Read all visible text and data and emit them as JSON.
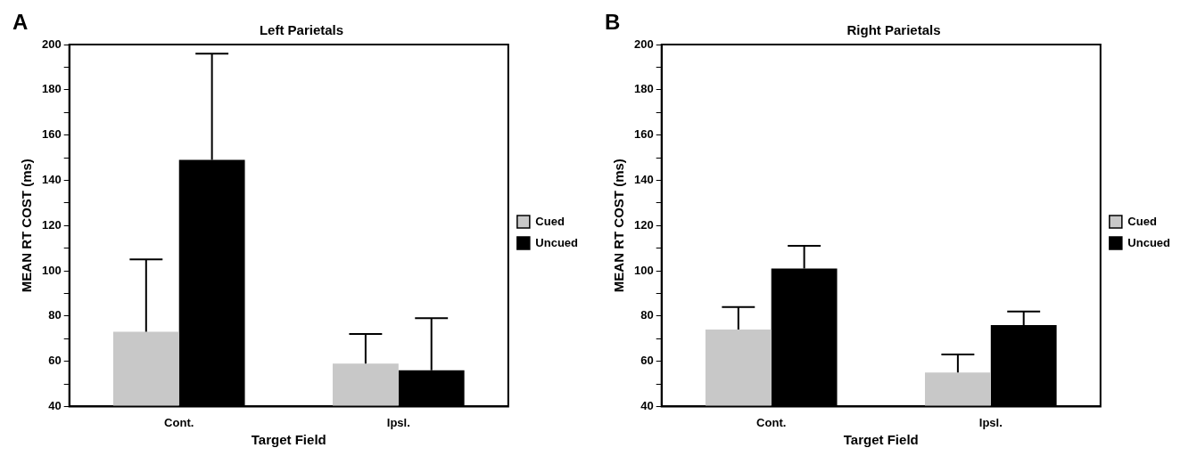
{
  "chart_data": [
    {
      "type": "bar",
      "title": "Left Parietals",
      "xlabel": "Target Field",
      "ylabel": "MEAN RT COST (ms)",
      "categories": [
        "Cont.",
        "Ipsl."
      ],
      "series": [
        {
          "name": "Cued",
          "color": "#c8c8c8",
          "values": [
            73,
            59
          ],
          "errors": [
            [
              73,
              105
            ],
            [
              59,
              72
            ]
          ]
        },
        {
          "name": "Uncued",
          "color": "#000000",
          "values": [
            149,
            56
          ],
          "errors": [
            [
              149,
              196
            ],
            [
              56,
              79
            ]
          ]
        }
      ],
      "ylim": [
        40,
        200
      ],
      "yticks": [
        40,
        {
          "value": 50,
          "label": null
        },
        60,
        {
          "value": 70,
          "label": null
        },
        80,
        {
          "value": 90,
          "label": null
        },
        100,
        {
          "value": 110,
          "label": null
        },
        120,
        {
          "value": 130,
          "label": null
        },
        140,
        {
          "value": 150,
          "label": null
        },
        160,
        {
          "value": 170,
          "label": null
        },
        180,
        {
          "value": 190,
          "label": null
        },
        200
      ],
      "grid": false,
      "legend": "right",
      "annotations": [
        "A"
      ]
    },
    {
      "type": "bar",
      "title": "Right Parietals",
      "xlabel": "Target Field",
      "ylabel": "MEAN RT COST (ms)",
      "categories": [
        "Cont.",
        "Ipsl."
      ],
      "series": [
        {
          "name": "Cued",
          "color": "#c8c8c8",
          "values": [
            74,
            55
          ],
          "errors": [
            [
              74,
              84
            ],
            [
              55,
              63
            ]
          ]
        },
        {
          "name": "Uncued",
          "color": "#000000",
          "values": [
            101,
            76
          ],
          "errors": [
            [
              101,
              111
            ],
            [
              76,
              82
            ]
          ]
        }
      ],
      "ylim": [
        40,
        200
      ],
      "yticks": [
        40,
        {
          "value": 50,
          "label": null
        },
        60,
        {
          "value": 70,
          "label": null
        },
        80,
        {
          "value": 90,
          "label": null
        },
        100,
        {
          "value": 110,
          "label": null
        },
        120,
        {
          "value": 130,
          "label": null
        },
        140,
        {
          "value": 150,
          "label": null
        },
        160,
        {
          "value": 170,
          "label": null
        },
        180,
        {
          "value": 190,
          "label": null
        },
        200
      ],
      "grid": false,
      "legend": "right",
      "annotations": [
        "B"
      ]
    }
  ]
}
